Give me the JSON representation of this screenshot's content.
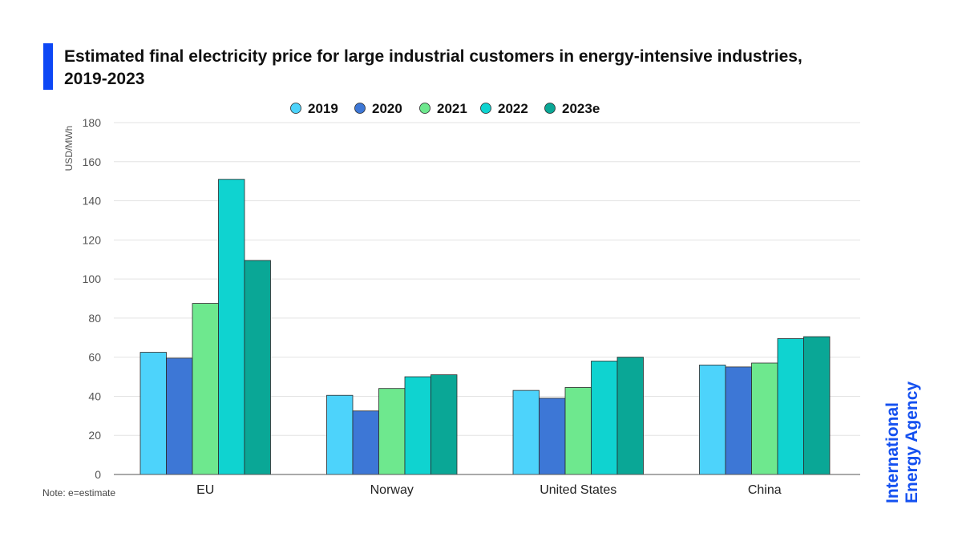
{
  "title": {
    "line1": "Estimated final electricity price for large industrial customers in energy-intensive industries,",
    "line2": "2019-2023"
  },
  "note": "Note: e=estimate",
  "brand": {
    "line1": "International",
    "line2": "Energy Agency"
  },
  "colors": {
    "accent": "#0d47f5",
    "brand": "#1450f0",
    "series": [
      "#4dd3fb",
      "#3d77d6",
      "#6ee88e",
      "#0fd3d0",
      "#0aa796"
    ]
  },
  "chart_data": {
    "type": "bar",
    "title": "Estimated final electricity price for large industrial customers in energy-intensive industries, 2019-2023",
    "categories": [
      "EU",
      "Norway",
      "United States",
      "China"
    ],
    "series": [
      {
        "name": "2019",
        "values": [
          62.5,
          40.5,
          43,
          56
        ]
      },
      {
        "name": "2020",
        "values": [
          59.5,
          32.5,
          39,
          55
        ]
      },
      {
        "name": "2021",
        "values": [
          87.5,
          44,
          44.5,
          57
        ]
      },
      {
        "name": "2022",
        "values": [
          151,
          50,
          58,
          69.5
        ]
      },
      {
        "name": "2023e",
        "values": [
          109.5,
          51,
          60,
          70.5
        ]
      }
    ],
    "ylabel": "USD/MWh",
    "xlabel": "",
    "ylim": [
      0,
      180
    ],
    "yticks": [
      0,
      20,
      40,
      60,
      80,
      100,
      120,
      140,
      160,
      180
    ],
    "grid": true,
    "legend_position": "top-center"
  }
}
